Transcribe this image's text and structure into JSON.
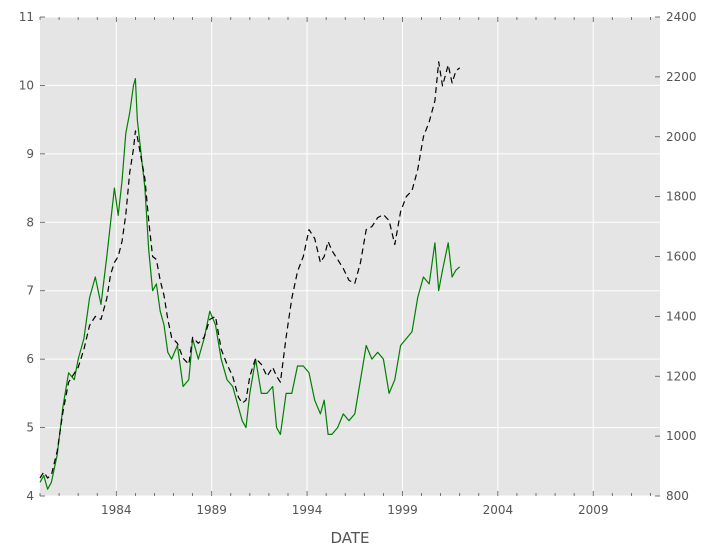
{
  "chart_data": {
    "type": "line",
    "xlabel": "DATE",
    "x_range": [
      1980.0,
      2012.5
    ],
    "x_ticks": [
      1984,
      1989,
      1994,
      1999,
      2004,
      2009
    ],
    "left_axis": {
      "range": [
        4,
        11
      ],
      "ticks": [
        4,
        5,
        6,
        7,
        8,
        9,
        10,
        11
      ]
    },
    "right_axis": {
      "range": [
        800,
        2400
      ],
      "ticks": [
        800,
        1000,
        1200,
        1400,
        1600,
        1800,
        2000,
        2200,
        2400
      ]
    },
    "grid": true,
    "legend": "none",
    "series": [
      {
        "axis": "left",
        "style": "solid",
        "color": "#008000",
        "x": [
          1980.0,
          1980.2,
          1980.4,
          1980.6,
          1980.9,
          1981.2,
          1981.5,
          1981.8,
          1982.0,
          1982.3,
          1982.6,
          1982.9,
          1983.2,
          1983.5,
          1983.7,
          1983.9,
          1984.1,
          1984.3,
          1984.5,
          1984.7,
          1984.9,
          1985.0,
          1985.1,
          1985.3,
          1985.5,
          1985.7,
          1985.9,
          1986.1,
          1986.3,
          1986.5,
          1986.7,
          1986.9,
          1987.2,
          1987.5,
          1987.8,
          1988.0,
          1988.3,
          1988.6,
          1988.9,
          1989.2,
          1989.5,
          1989.8,
          1990.1,
          1990.4,
          1990.6,
          1990.8,
          1991.0,
          1991.3,
          1991.6,
          1991.9,
          1992.2,
          1992.4,
          1992.6,
          1992.9,
          1993.2,
          1993.5,
          1993.8,
          1994.1,
          1994.4,
          1994.7,
          1994.9,
          1995.1,
          1995.3,
          1995.6,
          1995.9,
          1996.2,
          1996.5,
          1996.8,
          1997.1,
          1997.4,
          1997.7,
          1998.0,
          1998.3,
          1998.6,
          1998.9,
          1999.2,
          1999.5,
          1999.8,
          2000.1,
          2000.4,
          2000.7,
          2000.9,
          2001.1,
          2001.4,
          2001.6,
          2001.8,
          2002.0
        ],
        "values": [
          4.2,
          4.3,
          4.1,
          4.2,
          4.6,
          5.3,
          5.8,
          5.7,
          6.0,
          6.3,
          6.9,
          7.2,
          6.8,
          7.5,
          8.0,
          8.5,
          8.1,
          8.6,
          9.3,
          9.6,
          10.0,
          10.1,
          9.5,
          9.0,
          8.5,
          7.6,
          7.0,
          7.1,
          6.7,
          6.5,
          6.1,
          6.0,
          6.2,
          5.6,
          5.7,
          6.3,
          6.0,
          6.3,
          6.7,
          6.5,
          6.0,
          5.7,
          5.6,
          5.3,
          5.1,
          5.0,
          5.5,
          6.0,
          5.5,
          5.5,
          5.6,
          5.0,
          4.9,
          5.5,
          5.5,
          5.9,
          5.9,
          5.8,
          5.4,
          5.2,
          5.4,
          4.9,
          4.9,
          5.0,
          5.2,
          5.1,
          5.2,
          5.7,
          6.2,
          6.0,
          6.1,
          6.0,
          5.5,
          5.7,
          6.2,
          6.3,
          6.4,
          6.9,
          7.2,
          7.1,
          7.7,
          7.0,
          7.3,
          7.7,
          7.2,
          7.3,
          7.35
        ]
      },
      {
        "axis": "right",
        "style": "dashed",
        "color": "#000000",
        "x": [
          1980.0,
          1980.2,
          1980.4,
          1980.6,
          1980.9,
          1981.2,
          1981.5,
          1981.8,
          1982.0,
          1982.3,
          1982.6,
          1982.9,
          1983.2,
          1983.5,
          1983.7,
          1983.9,
          1984.1,
          1984.3,
          1984.5,
          1984.7,
          1984.9,
          1985.0,
          1985.1,
          1985.3,
          1985.5,
          1985.7,
          1985.9,
          1986.1,
          1986.3,
          1986.5,
          1986.7,
          1986.9,
          1987.2,
          1987.5,
          1987.8,
          1988.0,
          1988.3,
          1988.6,
          1988.9,
          1989.2,
          1989.5,
          1989.8,
          1990.1,
          1990.4,
          1990.6,
          1990.8,
          1991.0,
          1991.3,
          1991.6,
          1991.9,
          1992.2,
          1992.4,
          1992.6,
          1992.9,
          1993.2,
          1993.5,
          1993.8,
          1994.1,
          1994.4,
          1994.7,
          1994.9,
          1995.1,
          1995.3,
          1995.6,
          1995.9,
          1996.2,
          1996.5,
          1996.8,
          1997.1,
          1997.4,
          1997.7,
          1998.0,
          1998.3,
          1998.6,
          1998.9,
          1999.2,
          1999.5,
          1999.8,
          2000.1,
          2000.4,
          2000.7,
          2000.9,
          2001.1,
          2001.4,
          2001.6,
          2001.8,
          2002.0
        ],
        "values": [
          860,
          880,
          860,
          870,
          950,
          1080,
          1180,
          1210,
          1230,
          1290,
          1370,
          1400,
          1390,
          1460,
          1540,
          1580,
          1600,
          1650,
          1740,
          1880,
          1960,
          2020,
          2000,
          1930,
          1860,
          1720,
          1600,
          1590,
          1520,
          1470,
          1390,
          1330,
          1310,
          1260,
          1240,
          1330,
          1310,
          1330,
          1390,
          1400,
          1290,
          1240,
          1200,
          1130,
          1110,
          1120,
          1200,
          1260,
          1240,
          1200,
          1230,
          1200,
          1180,
          1330,
          1460,
          1550,
          1600,
          1690,
          1660,
          1580,
          1600,
          1650,
          1620,
          1590,
          1560,
          1520,
          1510,
          1580,
          1690,
          1700,
          1730,
          1740,
          1720,
          1640,
          1750,
          1800,
          1820,
          1890,
          2000,
          2050,
          2120,
          2250,
          2170,
          2240,
          2180,
          2220,
          2230
        ]
      }
    ]
  }
}
